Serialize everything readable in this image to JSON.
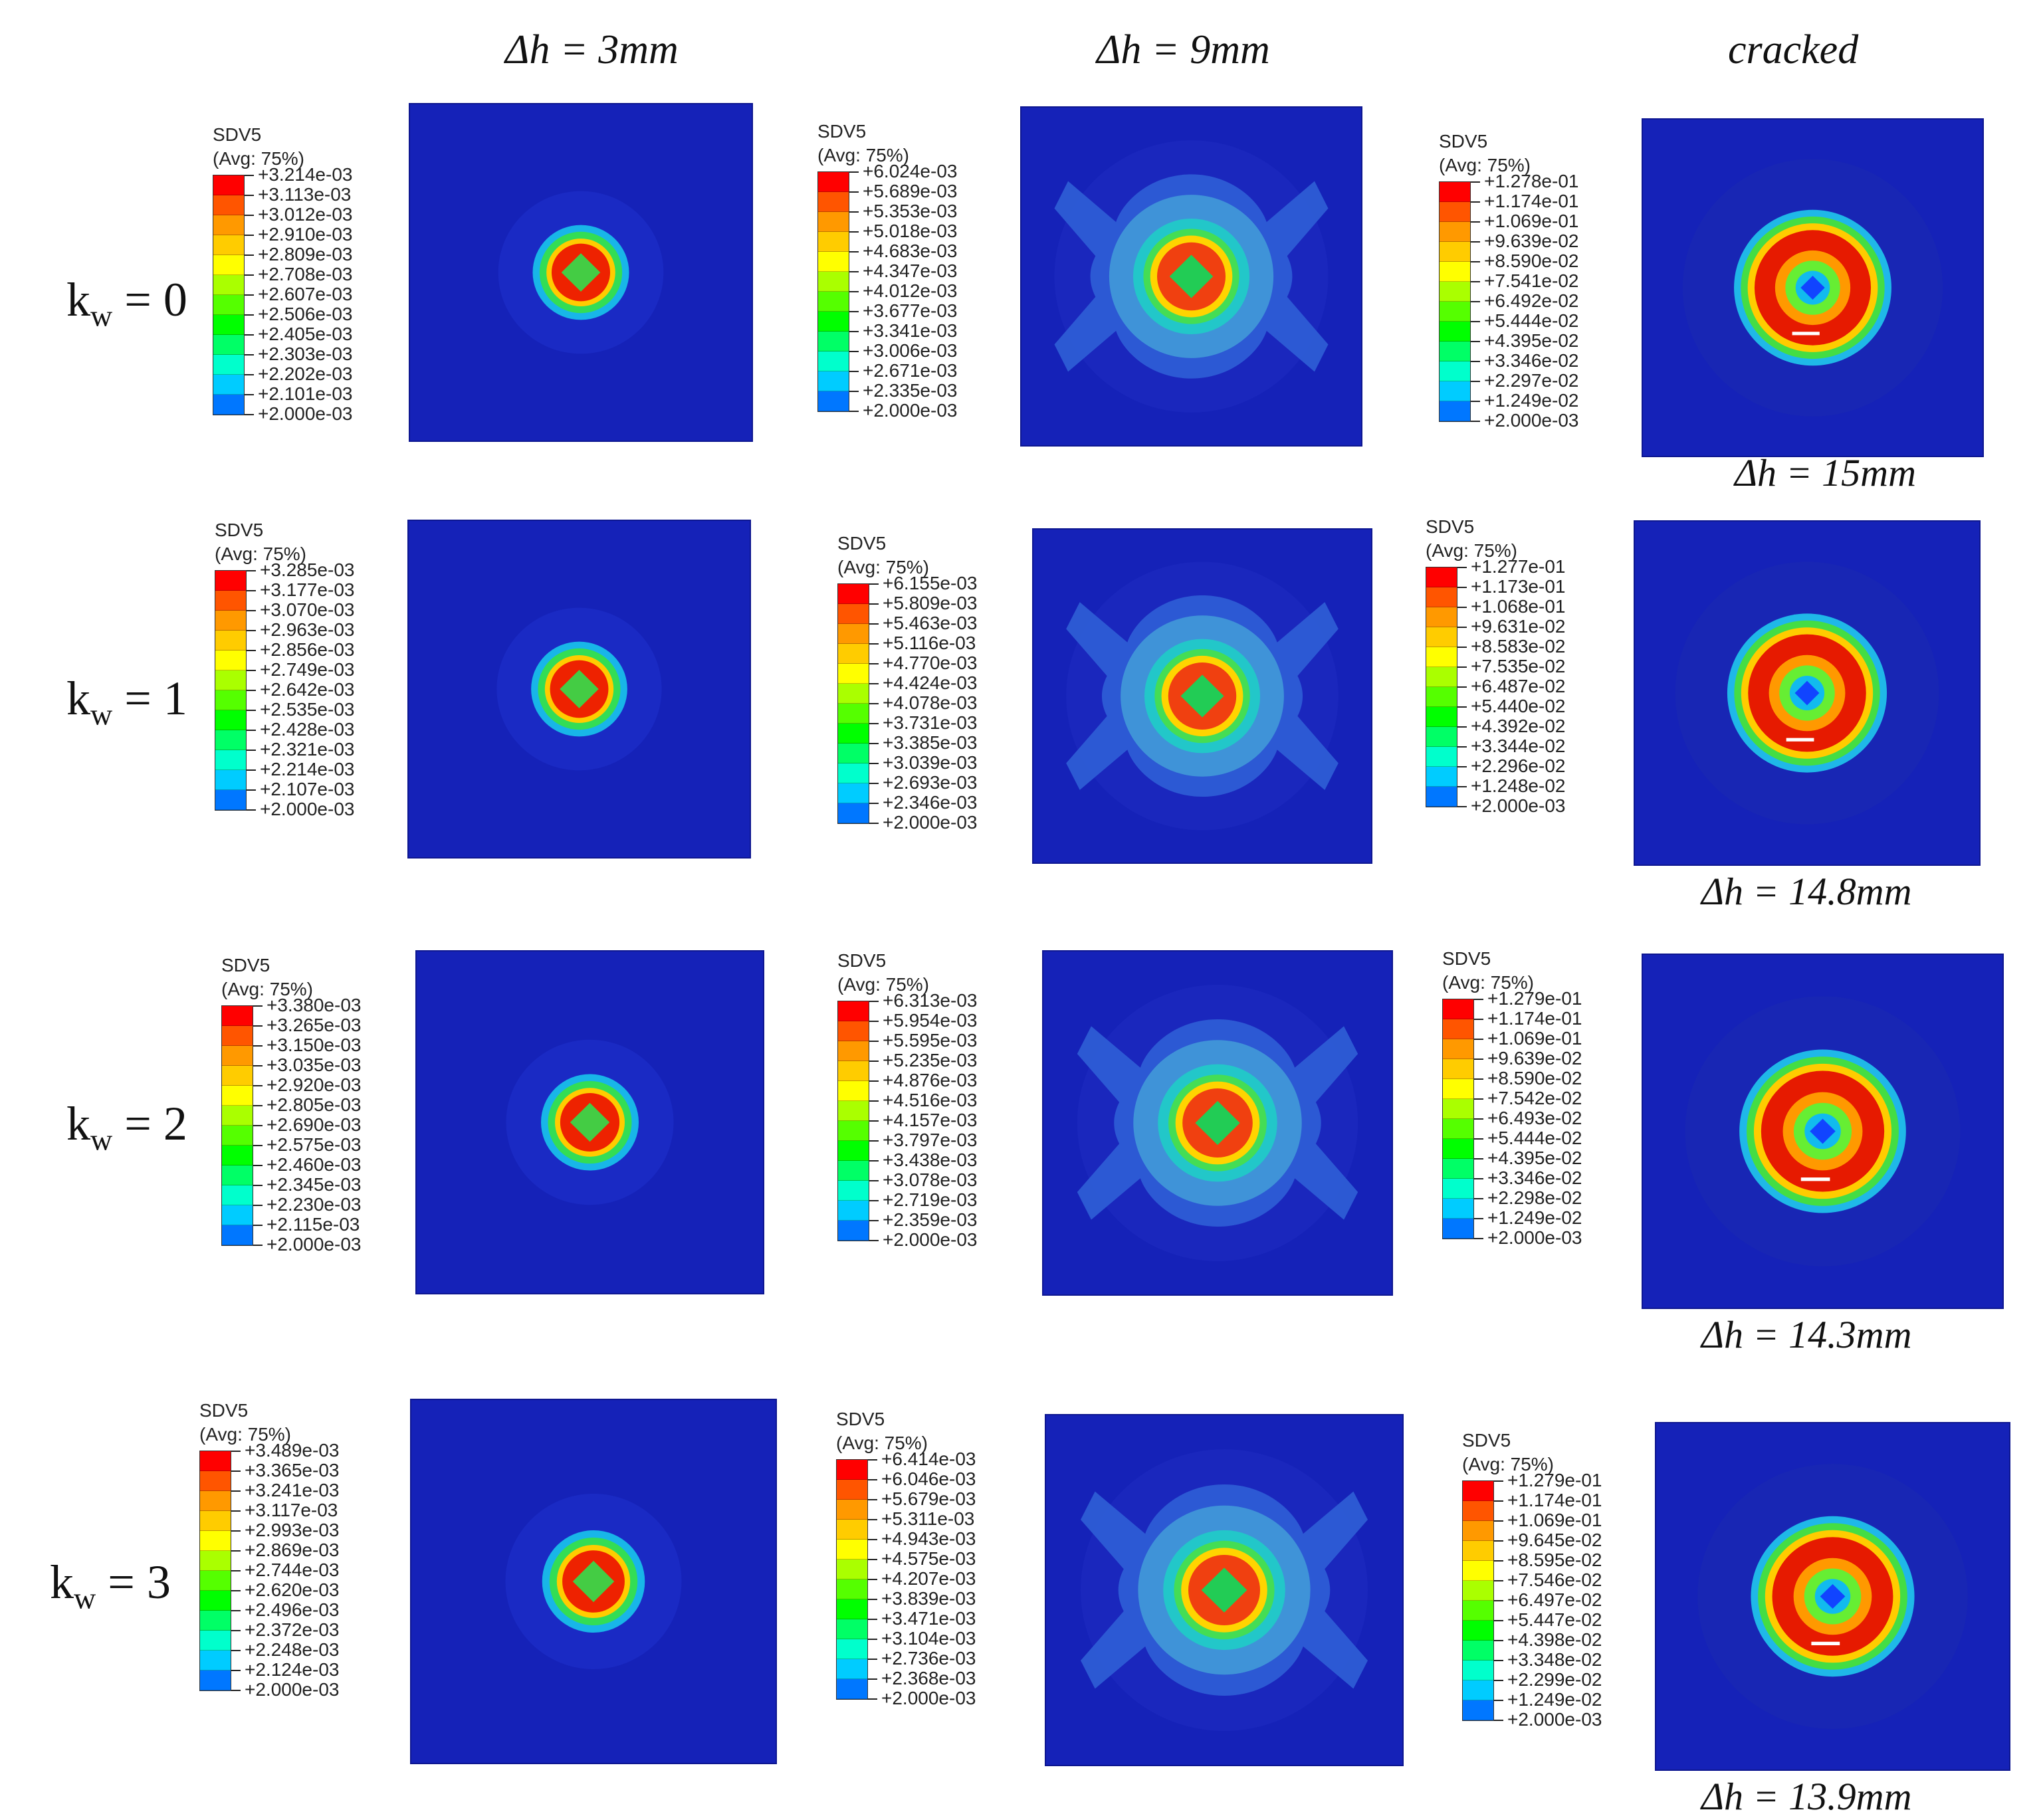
{
  "column_headers": [
    "Δh = 3mm",
    "Δh = 9mm",
    "cracked"
  ],
  "row_labels": [
    {
      "base": "k",
      "sub": "w",
      "rest": " = 0"
    },
    {
      "base": "k",
      "sub": "w",
      "rest": " = 1"
    },
    {
      "base": "k",
      "sub": "w",
      "rest": " = 2"
    },
    {
      "base": "k",
      "sub": "w",
      "rest": " = 3"
    }
  ],
  "cracked_dh": [
    "Δh = 15mm",
    "Δh = 14.8mm",
    "Δh = 14.3mm",
    "Δh = 13.9mm"
  ],
  "legend_variable": "SDV5",
  "legend_avg": "(Avg: 75%)",
  "legend_colors": [
    "#ff0000",
    "#ff5500",
    "#ff9900",
    "#ffcc00",
    "#ffff00",
    "#aaff00",
    "#55ff00",
    "#00ff00",
    "#00ff66",
    "#00ffcc",
    "#00ccff",
    "#0077ff",
    "#0022ff"
  ],
  "legends": [
    [
      "+3.214e-03",
      "+3.113e-03",
      "+3.012e-03",
      "+2.910e-03",
      "+2.809e-03",
      "+2.708e-03",
      "+2.607e-03",
      "+2.506e-03",
      "+2.405e-03",
      "+2.303e-03",
      "+2.202e-03",
      "+2.101e-03",
      "+2.000e-03"
    ],
    [
      "+6.024e-03",
      "+5.689e-03",
      "+5.353e-03",
      "+5.018e-03",
      "+4.683e-03",
      "+4.347e-03",
      "+4.012e-03",
      "+3.677e-03",
      "+3.341e-03",
      "+3.006e-03",
      "+2.671e-03",
      "+2.335e-03",
      "+2.000e-03"
    ],
    [
      "+1.278e-01",
      "+1.174e-01",
      "+1.069e-01",
      "+9.639e-02",
      "+8.590e-02",
      "+7.541e-02",
      "+6.492e-02",
      "+5.444e-02",
      "+4.395e-02",
      "+3.346e-02",
      "+2.297e-02",
      "+1.249e-02",
      "+2.000e-03"
    ],
    [
      "+3.285e-03",
      "+3.177e-03",
      "+3.070e-03",
      "+2.963e-03",
      "+2.856e-03",
      "+2.749e-03",
      "+2.642e-03",
      "+2.535e-03",
      "+2.428e-03",
      "+2.321e-03",
      "+2.214e-03",
      "+2.107e-03",
      "+2.000e-03"
    ],
    [
      "+6.155e-03",
      "+5.809e-03",
      "+5.463e-03",
      "+5.116e-03",
      "+4.770e-03",
      "+4.424e-03",
      "+4.078e-03",
      "+3.731e-03",
      "+3.385e-03",
      "+3.039e-03",
      "+2.693e-03",
      "+2.346e-03",
      "+2.000e-03"
    ],
    [
      "+1.277e-01",
      "+1.173e-01",
      "+1.068e-01",
      "+9.631e-02",
      "+8.583e-02",
      "+7.535e-02",
      "+6.487e-02",
      "+5.440e-02",
      "+4.392e-02",
      "+3.344e-02",
      "+2.296e-02",
      "+1.248e-02",
      "+2.000e-03"
    ],
    [
      "+3.380e-03",
      "+3.265e-03",
      "+3.150e-03",
      "+3.035e-03",
      "+2.920e-03",
      "+2.805e-03",
      "+2.690e-03",
      "+2.575e-03",
      "+2.460e-03",
      "+2.345e-03",
      "+2.230e-03",
      "+2.115e-03",
      "+2.000e-03"
    ],
    [
      "+6.313e-03",
      "+5.954e-03",
      "+5.595e-03",
      "+5.235e-03",
      "+4.876e-03",
      "+4.516e-03",
      "+4.157e-03",
      "+3.797e-03",
      "+3.438e-03",
      "+3.078e-03",
      "+2.719e-03",
      "+2.359e-03",
      "+2.000e-03"
    ],
    [
      "+1.279e-01",
      "+1.174e-01",
      "+1.069e-01",
      "+9.639e-02",
      "+8.590e-02",
      "+7.542e-02",
      "+6.493e-02",
      "+5.444e-02",
      "+4.395e-02",
      "+3.346e-02",
      "+2.298e-02",
      "+1.249e-02",
      "+2.000e-03"
    ],
    [
      "+3.489e-03",
      "+3.365e-03",
      "+3.241e-03",
      "+3.117e-03",
      "+2.993e-03",
      "+2.869e-03",
      "+2.744e-03",
      "+2.620e-03",
      "+2.496e-03",
      "+2.372e-03",
      "+2.248e-03",
      "+2.124e-03",
      "+2.000e-03"
    ],
    [
      "+6.414e-03",
      "+6.046e-03",
      "+5.679e-03",
      "+5.311e-03",
      "+4.943e-03",
      "+4.575e-03",
      "+4.207e-03",
      "+3.839e-03",
      "+3.471e-03",
      "+3.104e-03",
      "+2.736e-03",
      "+2.368e-03",
      "+2.000e-03"
    ],
    [
      "+1.279e-01",
      "+1.174e-01",
      "+1.069e-01",
      "+9.645e-02",
      "+8.595e-02",
      "+7.546e-02",
      "+6.497e-02",
      "+5.447e-02",
      "+4.398e-02",
      "+3.348e-02",
      "+2.299e-02",
      "+1.249e-02",
      "+2.000e-03"
    ]
  ]
}
